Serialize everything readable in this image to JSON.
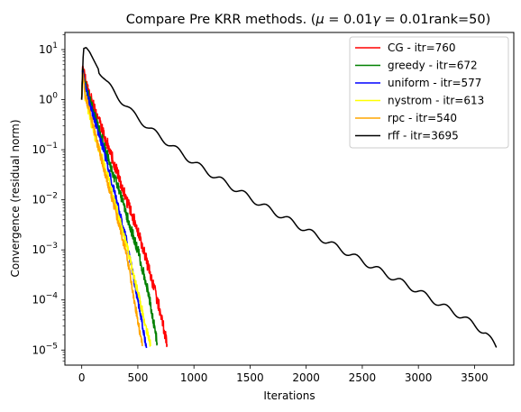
{
  "chart_data": {
    "type": "line",
    "title": "Compare Pre KRR methods. (μ = 0.01γ = 0.01rank=50)",
    "title_parts": {
      "prefix": "Compare Pre KRR methods. (",
      "mu": "μ",
      "eq1": " = 0.01",
      "gamma": "γ",
      "eq2": " = 0.01rank=50)"
    },
    "xlabel": "Iterations",
    "ylabel": "Convergence (residual norm)",
    "xlim": [
      -150,
      3850
    ],
    "ylim": [
      5e-06,
      22.0
    ],
    "yscale": "log",
    "x_ticks": [
      0,
      500,
      1000,
      1500,
      2000,
      2500,
      3000,
      3500
    ],
    "y_ticks": [
      {
        "value": 10.0,
        "base": "10",
        "exp": "1"
      },
      {
        "value": 1.0,
        "base": "10",
        "exp": "0"
      },
      {
        "value": 0.1,
        "base": "10",
        "exp": "−1"
      },
      {
        "value": 0.01,
        "base": "10",
        "exp": "−2"
      },
      {
        "value": 0.001,
        "base": "10",
        "exp": "−3"
      },
      {
        "value": 0.0001,
        "base": "10",
        "exp": "−4"
      },
      {
        "value": 1e-05,
        "base": "10",
        "exp": "−5"
      }
    ],
    "legend_position": "top-right",
    "grid": false,
    "series": [
      {
        "name": "CG - itr=760",
        "color": "#ff0000",
        "noise": 0.18,
        "points": [
          [
            0,
            1.0
          ],
          [
            8,
            5.0
          ],
          [
            30,
            2.5
          ],
          [
            100,
            0.8
          ],
          [
            200,
            0.2
          ],
          [
            300,
            0.045
          ],
          [
            400,
            0.01
          ],
          [
            500,
            0.0025
          ],
          [
            600,
            0.0004
          ],
          [
            700,
            6e-05
          ],
          [
            760,
            1.3e-05
          ]
        ]
      },
      {
        "name": "greedy - itr=672",
        "color": "#008000",
        "noise": 0.16,
        "points": [
          [
            0,
            1.0
          ],
          [
            8,
            4.5
          ],
          [
            30,
            2.0
          ],
          [
            100,
            0.6
          ],
          [
            200,
            0.12
          ],
          [
            300,
            0.025
          ],
          [
            400,
            0.005
          ],
          [
            500,
            0.001
          ],
          [
            600,
            0.00012
          ],
          [
            672,
            1.4e-05
          ]
        ]
      },
      {
        "name": "uniform - itr=577",
        "color": "#0000ff",
        "noise": 0.12,
        "points": [
          [
            0,
            1.0
          ],
          [
            8,
            4.2
          ],
          [
            30,
            1.8
          ],
          [
            100,
            0.5
          ],
          [
            200,
            0.09
          ],
          [
            300,
            0.012
          ],
          [
            400,
            0.0015
          ],
          [
            500,
            0.0001
          ],
          [
            577,
            1.1e-05
          ]
        ]
      },
      {
        "name": "nystrom - itr=613",
        "color": "#ffff00",
        "noise": 0.14,
        "points": [
          [
            0,
            1.0
          ],
          [
            8,
            3.5
          ],
          [
            30,
            1.2
          ],
          [
            100,
            0.25
          ],
          [
            200,
            0.05
          ],
          [
            300,
            0.008
          ],
          [
            400,
            0.0012
          ],
          [
            500,
            0.00015
          ],
          [
            613,
            1.2e-05
          ]
        ]
      },
      {
        "name": "rpc - itr=540",
        "color": "#ffa500",
        "noise": 0.12,
        "points": [
          [
            0,
            1.0
          ],
          [
            8,
            3.8
          ],
          [
            30,
            1.3
          ],
          [
            100,
            0.3
          ],
          [
            200,
            0.04
          ],
          [
            300,
            0.006
          ],
          [
            400,
            0.0008
          ],
          [
            480,
            7e-05
          ],
          [
            540,
            1.2e-05
          ]
        ]
      },
      {
        "name": "rff - itr=3695",
        "color": "#000000",
        "noise": 0.0,
        "points": [
          [
            0,
            1.0
          ],
          [
            15,
            10.5
          ],
          [
            40,
            11.0
          ],
          [
            70,
            9.0
          ],
          [
            110,
            6.0
          ],
          [
            150,
            4.0
          ],
          [
            220,
            2.2
          ],
          [
            330,
            1.1
          ],
          [
            450,
            0.55
          ],
          [
            600,
            0.27
          ],
          [
            800,
            0.12
          ],
          [
            1000,
            0.055
          ],
          [
            1200,
            0.028
          ],
          [
            1400,
            0.015
          ],
          [
            1600,
            0.008
          ],
          [
            1800,
            0.0045
          ],
          [
            2000,
            0.0025
          ],
          [
            2200,
            0.0014
          ],
          [
            2400,
            0.0008
          ],
          [
            2600,
            0.00045
          ],
          [
            2800,
            0.00026
          ],
          [
            3000,
            0.00015
          ],
          [
            3200,
            8e-05
          ],
          [
            3400,
            4.5e-05
          ],
          [
            3600,
            2.2e-05
          ],
          [
            3695,
            1.1e-05
          ]
        ]
      }
    ]
  }
}
